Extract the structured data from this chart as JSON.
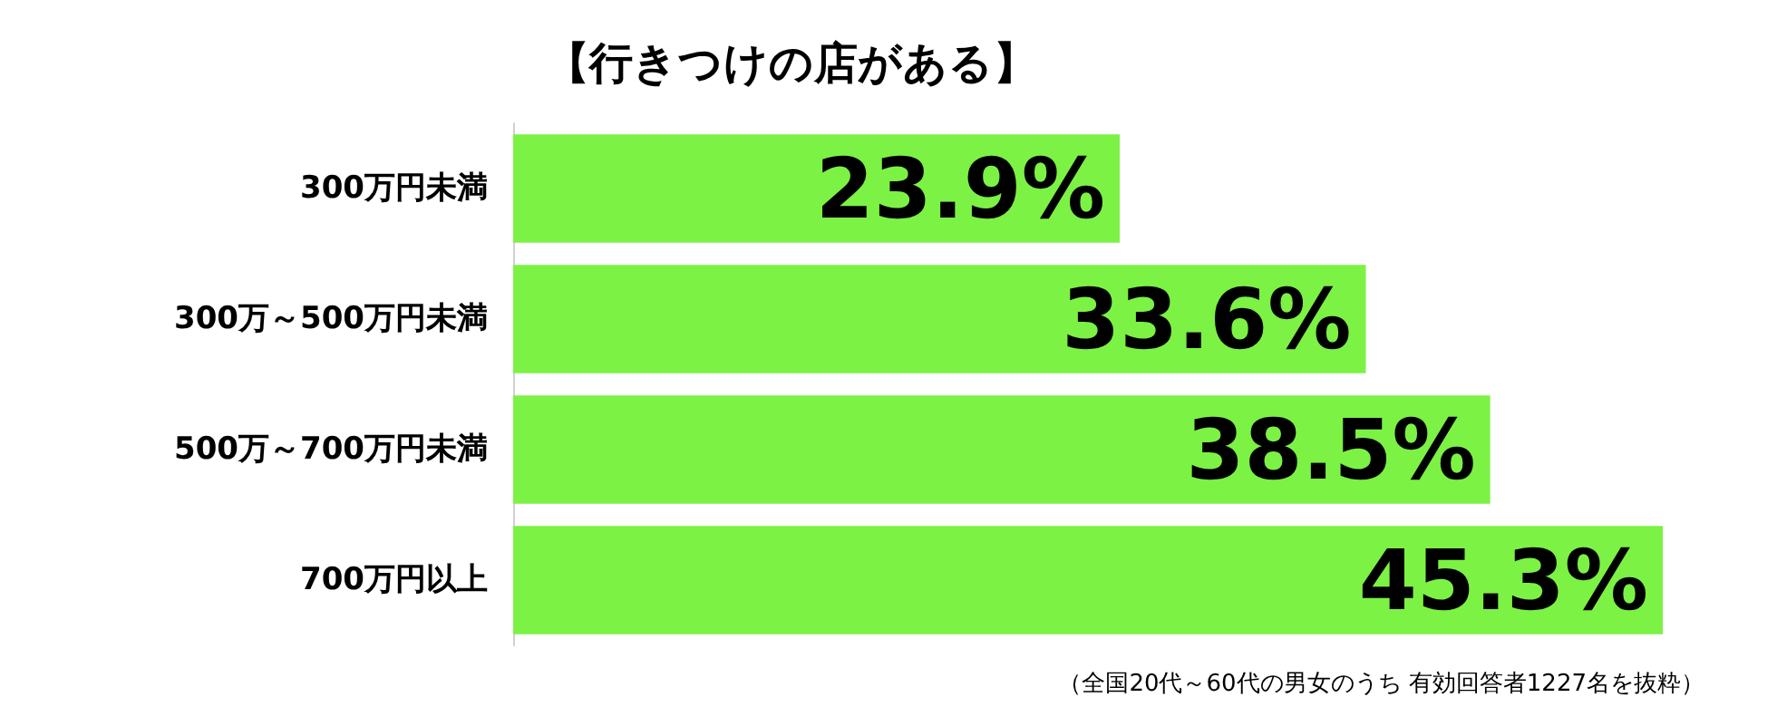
{
  "chart_data": {
    "type": "bar",
    "orientation": "horizontal",
    "title": "【行きつけの店がある】",
    "categories": [
      "300万円未満",
      "300万～500万円未満",
      "500万～700万円未満",
      "700万円以上"
    ],
    "values": [
      23.9,
      33.6,
      38.5,
      45.3
    ],
    "color": "#7cf244",
    "value_labels": [
      "23.9%",
      "33.6%",
      "38.5%",
      "45.3%"
    ],
    "annotations": [
      "（全国20代～60代の男女のうち 有効回答者1227名を抜粋）"
    ]
  }
}
